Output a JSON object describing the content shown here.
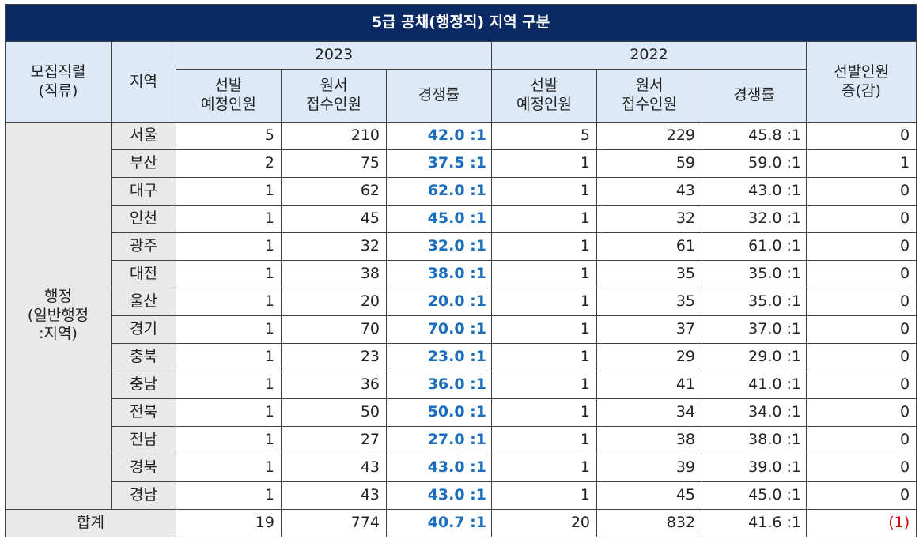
{
  "title": "5급 공채(행정직) 지역 구분",
  "headers": {
    "job": [
      "모집직렬",
      "(직류)"
    ],
    "region": "지역",
    "years": [
      "2023",
      "2022"
    ],
    "planned": [
      "선발",
      "예정인원"
    ],
    "applicants": [
      "원서",
      "접수인원"
    ],
    "rate": "경쟁률",
    "change": [
      "선발인원",
      "증(감)"
    ]
  },
  "group_label": [
    "행정",
    "(일반행정",
    ":지역)"
  ],
  "rows": [
    {
      "region": "서울",
      "p23": "5",
      "a23": "210",
      "r23": "42.0 :1",
      "p22": "5",
      "a22": "229",
      "r22": "45.8 :1",
      "chg": "0"
    },
    {
      "region": "부산",
      "p23": "2",
      "a23": "75",
      "r23": "37.5 :1",
      "p22": "1",
      "a22": "59",
      "r22": "59.0 :1",
      "chg": "1"
    },
    {
      "region": "대구",
      "p23": "1",
      "a23": "62",
      "r23": "62.0 :1",
      "p22": "1",
      "a22": "43",
      "r22": "43.0 :1",
      "chg": "0"
    },
    {
      "region": "인천",
      "p23": "1",
      "a23": "45",
      "r23": "45.0 :1",
      "p22": "1",
      "a22": "32",
      "r22": "32.0 :1",
      "chg": "0"
    },
    {
      "region": "광주",
      "p23": "1",
      "a23": "32",
      "r23": "32.0 :1",
      "p22": "1",
      "a22": "61",
      "r22": "61.0 :1",
      "chg": "0"
    },
    {
      "region": "대전",
      "p23": "1",
      "a23": "38",
      "r23": "38.0 :1",
      "p22": "1",
      "a22": "35",
      "r22": "35.0 :1",
      "chg": "0"
    },
    {
      "region": "울산",
      "p23": "1",
      "a23": "20",
      "r23": "20.0 :1",
      "p22": "1",
      "a22": "35",
      "r22": "35.0 :1",
      "chg": "0"
    },
    {
      "region": "경기",
      "p23": "1",
      "a23": "70",
      "r23": "70.0 :1",
      "p22": "1",
      "a22": "37",
      "r22": "37.0 :1",
      "chg": "0"
    },
    {
      "region": "충북",
      "p23": "1",
      "a23": "23",
      "r23": "23.0 :1",
      "p22": "1",
      "a22": "29",
      "r22": "29.0 :1",
      "chg": "0"
    },
    {
      "region": "충남",
      "p23": "1",
      "a23": "36",
      "r23": "36.0 :1",
      "p22": "1",
      "a22": "41",
      "r22": "41.0 :1",
      "chg": "0"
    },
    {
      "region": "전북",
      "p23": "1",
      "a23": "50",
      "r23": "50.0 :1",
      "p22": "1",
      "a22": "34",
      "r22": "34.0 :1",
      "chg": "0"
    },
    {
      "region": "전남",
      "p23": "1",
      "a23": "27",
      "r23": "27.0 :1",
      "p22": "1",
      "a22": "38",
      "r22": "38.0 :1",
      "chg": "0"
    },
    {
      "region": "경북",
      "p23": "1",
      "a23": "43",
      "r23": "43.0 :1",
      "p22": "1",
      "a22": "39",
      "r22": "39.0 :1",
      "chg": "0"
    },
    {
      "region": "경남",
      "p23": "1",
      "a23": "43",
      "r23": "43.0 :1",
      "p22": "1",
      "a22": "45",
      "r22": "45.0 :1",
      "chg": "0"
    }
  ],
  "total": {
    "label": "합계",
    "p23": "19",
    "a23": "774",
    "r23": "40.7 :1",
    "p22": "20",
    "a22": "832",
    "r22": "41.6 :1",
    "chg": "(1)"
  },
  "colors": {
    "title_bg": "#0b2a63",
    "header_bg": "#dde9f7",
    "side_bg": "#e9e9e9",
    "rate_2023": "#1a6ebd",
    "negative": "#d00000"
  }
}
